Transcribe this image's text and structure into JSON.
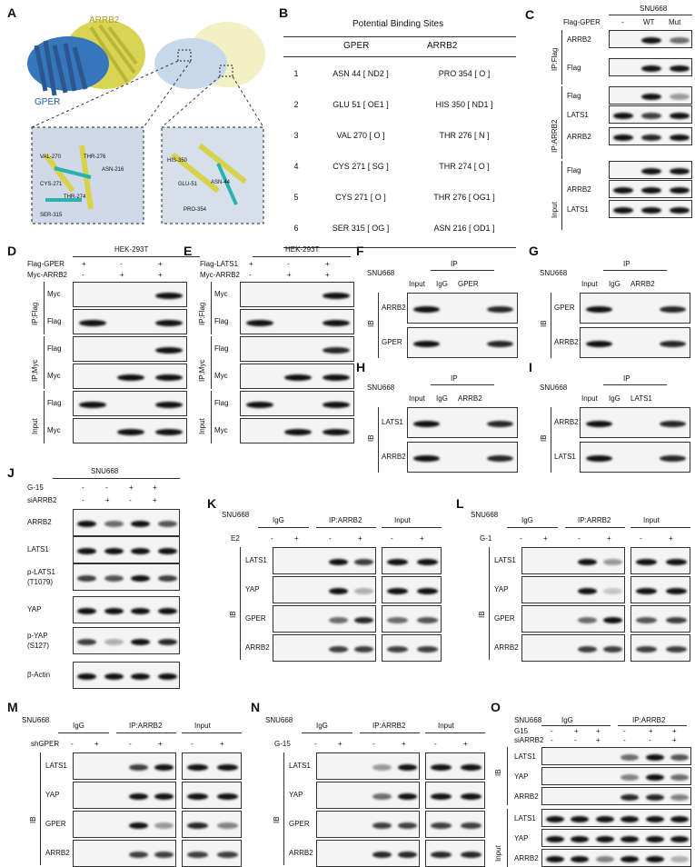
{
  "panels": {
    "A": {
      "label": "A",
      "arrb2": "ARRB2",
      "gper": "GPER",
      "zoom1": [
        "VAL-270",
        "THR-276",
        "ASN-216",
        "CYS-271",
        "THR-274",
        "SER-315"
      ],
      "zoom2": [
        "HIS-350",
        "GLU-51",
        "ASN-44",
        "PRO-354"
      ]
    },
    "B": {
      "label": "B",
      "title": "Potential Binding Sites",
      "col_gper": "GPER",
      "col_arrb2": "ARRB2",
      "rows": [
        {
          "n": "1",
          "gper": "ASN 44 [ ND2 ]",
          "arrb2": "PRO 354 [ O ]"
        },
        {
          "n": "2",
          "gper": "GLU 51 [ OE1 ]",
          "arrb2": "HIS 350 [ ND1 ]"
        },
        {
          "n": "3",
          "gper": "VAL 270 [ O ]",
          "arrb2": "THR 276 [ N ]"
        },
        {
          "n": "4",
          "gper": "CYS 271 [ SG ]",
          "arrb2": "THR 274 [ O ]"
        },
        {
          "n": "5",
          "gper": "CYS 271 [ O ]",
          "arrb2": "THR 276 [ OG1 ]"
        },
        {
          "n": "6",
          "gper": "SER 315 [ OG ]",
          "arrb2": "ASN 216 [ OD1 ]"
        }
      ]
    },
    "C": {
      "label": "C",
      "cell": "SNU668",
      "cond": "Flag-GPER",
      "lanes": [
        "-",
        "WT",
        "Mut"
      ],
      "g1": "IP:Flag",
      "g2": "IP:ARRB2",
      "g3": "Input",
      "rows": [
        "ARRB2",
        "Flag",
        "Flag",
        "LATS1",
        "ARRB2",
        "Flag",
        "ARRB2",
        "LATS1"
      ]
    },
    "D": {
      "label": "D",
      "cell": "HEK-293T",
      "c1": "Flag-GPER",
      "c2": "Myc-ARRB2",
      "s1": [
        "+",
        "-",
        "+"
      ],
      "s2": [
        "-",
        "+",
        "+"
      ],
      "g1": "IP:Flag",
      "g2": "IP:Myc",
      "g3": "Input",
      "rows": [
        "Myc",
        "Flag",
        "Flag",
        "Myc",
        "Flag",
        "Myc"
      ]
    },
    "E": {
      "label": "E",
      "cell": "HEK-293T",
      "c1": "Flag-LATS1",
      "c2": "Myc-ARRB2",
      "s1": [
        "+",
        "-",
        "+"
      ],
      "s2": [
        "-",
        "+",
        "+"
      ],
      "g1": "IP:Flag",
      "g2": "IP:Myc",
      "g3": "Input",
      "rows": [
        "Myc",
        "Flag",
        "Flag",
        "Myc",
        "Flag",
        "Myc"
      ]
    },
    "F": {
      "label": "F",
      "cell": "SNU668",
      "ip": "IP",
      "lanes": [
        "Input",
        "IgG",
        "GPER"
      ],
      "ib": "IB",
      "rows": [
        "ARRB2",
        "GPER"
      ]
    },
    "G": {
      "label": "G",
      "cell": "SNU668",
      "ip": "IP",
      "lanes": [
        "Input",
        "IgG",
        "ARRB2"
      ],
      "ib": "IB",
      "rows": [
        "GPER",
        "ARRB2"
      ]
    },
    "H": {
      "label": "H",
      "cell": "SNU668",
      "ip": "IP",
      "lanes": [
        "Input",
        "IgG",
        "ARRB2"
      ],
      "ib": "IB",
      "rows": [
        "LATS1",
        "ARRB2"
      ]
    },
    "I": {
      "label": "I",
      "cell": "SNU668",
      "ip": "IP",
      "lanes": [
        "Input",
        "IgG",
        "LATS1"
      ],
      "ib": "IB",
      "rows": [
        "ARRB2",
        "LATS1"
      ]
    },
    "J": {
      "label": "J",
      "cell": "SNU668",
      "c1": "G-15",
      "c2": "siARRB2",
      "s1": [
        "-",
        "-",
        "+",
        "+"
      ],
      "s2": [
        "-",
        "+",
        "-",
        "+"
      ],
      "rows": [
        "ARRB2",
        "LATS1",
        "p-LATS1",
        "(T1079)",
        "YAP",
        "p-YAP",
        "(S127)",
        "β-Actin"
      ]
    },
    "K": {
      "label": "K",
      "cell": "SNU668",
      "h": [
        "IgG",
        "IP:ARRB2",
        "Input"
      ],
      "cond": "E2",
      "s": [
        "-",
        "+",
        "-",
        "+",
        "-",
        "+"
      ],
      "ib": "IB",
      "rows": [
        "LATS1",
        "YAP",
        "GPER",
        "ARRB2"
      ]
    },
    "L": {
      "label": "L",
      "cell": "SNU668",
      "h": [
        "IgG",
        "IP:ARRB2",
        "Input"
      ],
      "cond": "G-1",
      "s": [
        "-",
        "+",
        "-",
        "+",
        "-",
        "+"
      ],
      "ib": "IB",
      "rows": [
        "LATS1",
        "YAP",
        "GPER",
        "ARRB2"
      ]
    },
    "M": {
      "label": "M",
      "cell": "SNU668",
      "h": [
        "IgG",
        "IP:ARRB2",
        "Input"
      ],
      "cond": "shGPER",
      "s": [
        "-",
        "+",
        "-",
        "+",
        "-",
        "+"
      ],
      "ib": "IB",
      "rows": [
        "LATS1",
        "YAP",
        "GPER",
        "ARRB2"
      ]
    },
    "N": {
      "label": "N",
      "cell": "SNU668",
      "h": [
        "IgG",
        "IP:ARRB2",
        "Input"
      ],
      "cond": "G-15",
      "s": [
        "-",
        "+",
        "-",
        "+",
        "-",
        "+"
      ],
      "ib": "IB",
      "rows": [
        "LATS1",
        "YAP",
        "GPER",
        "ARRB2"
      ]
    },
    "O": {
      "label": "O",
      "cell": "SNU668",
      "h": [
        "IgG",
        "IP:ARRB2"
      ],
      "c1": "G15",
      "c2": "siARRB2",
      "s1": [
        "-",
        "+",
        "+",
        "-",
        "+",
        "+"
      ],
      "s2": [
        "-",
        "-",
        "+",
        "-",
        "-",
        "+"
      ],
      "ib": "IB",
      "input": "Input",
      "rows": [
        "LATS1",
        "YAP",
        "ARRB2",
        "LATS1",
        "YAP",
        "ARRB2"
      ]
    }
  }
}
